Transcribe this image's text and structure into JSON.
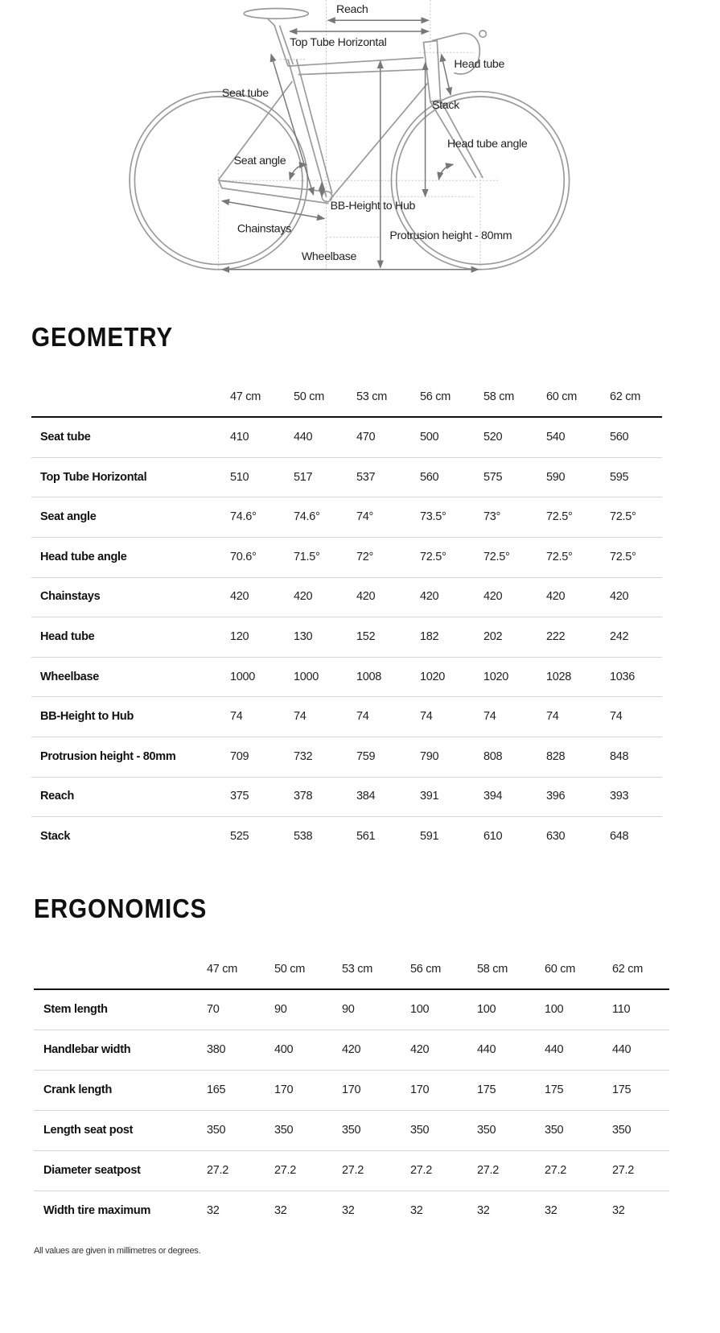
{
  "diagram": {
    "labels": {
      "reach": "Reach",
      "top_tube": "Top Tube Horizontal",
      "head_tube": "Head tube",
      "seat_tube": "Seat tube",
      "stack": "Stack",
      "head_tube_angle": "Head tube angle",
      "seat_angle": "Seat angle",
      "bb_height": "BB-Height to Hub",
      "chainstays": "Chainstays",
      "protrusion": "Protrusion height - 80mm",
      "wheelbase": "Wheelbase"
    }
  },
  "geometry": {
    "title": "GEOMETRY",
    "sizes": [
      "47 cm",
      "50 cm",
      "53 cm",
      "56 cm",
      "58 cm",
      "60 cm",
      "62 cm"
    ],
    "rows": [
      {
        "label": "Seat tube",
        "values": [
          "410",
          "440",
          "470",
          "500",
          "520",
          "540",
          "560"
        ]
      },
      {
        "label": "Top Tube Horizontal",
        "values": [
          "510",
          "517",
          "537",
          "560",
          "575",
          "590",
          "595"
        ]
      },
      {
        "label": "Seat angle",
        "values": [
          "74.6°",
          "74.6°",
          "74°",
          "73.5°",
          "73°",
          "72.5°",
          "72.5°"
        ]
      },
      {
        "label": "Head tube angle",
        "values": [
          "70.6°",
          "71.5°",
          "72°",
          "72.5°",
          "72.5°",
          "72.5°",
          "72.5°"
        ]
      },
      {
        "label": "Chainstays",
        "values": [
          "420",
          "420",
          "420",
          "420",
          "420",
          "420",
          "420"
        ]
      },
      {
        "label": "Head tube",
        "values": [
          "120",
          "130",
          "152",
          "182",
          "202",
          "222",
          "242"
        ]
      },
      {
        "label": "Wheelbase",
        "values": [
          "1000",
          "1000",
          "1008",
          "1020",
          "1020",
          "1028",
          "1036"
        ]
      },
      {
        "label": "BB-Height to Hub",
        "values": [
          "74",
          "74",
          "74",
          "74",
          "74",
          "74",
          "74"
        ]
      },
      {
        "label": "Protrusion height - 80mm",
        "values": [
          "709",
          "732",
          "759",
          "790",
          "808",
          "828",
          "848"
        ]
      },
      {
        "label": "Reach",
        "values": [
          "375",
          "378",
          "384",
          "391",
          "394",
          "396",
          "393"
        ]
      },
      {
        "label": "Stack",
        "values": [
          "525",
          "538",
          "561",
          "591",
          "610",
          "630",
          "648"
        ]
      }
    ]
  },
  "ergonomics": {
    "title": "ERGONOMICS",
    "sizes": [
      "47 cm",
      "50 cm",
      "53 cm",
      "56 cm",
      "58 cm",
      "60 cm",
      "62 cm"
    ],
    "rows": [
      {
        "label": "Stem length",
        "values": [
          "70",
          "90",
          "90",
          "100",
          "100",
          "100",
          "110"
        ]
      },
      {
        "label": "Handlebar width",
        "values": [
          "380",
          "400",
          "420",
          "420",
          "440",
          "440",
          "440"
        ]
      },
      {
        "label": "Crank length",
        "values": [
          "165",
          "170",
          "170",
          "170",
          "175",
          "175",
          "175"
        ]
      },
      {
        "label": "Length seat post",
        "values": [
          "350",
          "350",
          "350",
          "350",
          "350",
          "350",
          "350"
        ]
      },
      {
        "label": "Diameter seatpost",
        "values": [
          "27.2",
          "27.2",
          "27.2",
          "27.2",
          "27.2",
          "27.2",
          "27.2"
        ]
      },
      {
        "label": "Width tire maximum",
        "values": [
          "32",
          "32",
          "32",
          "32",
          "32",
          "32",
          "32"
        ]
      }
    ]
  },
  "footnote": "All values are given in millimetres or degrees."
}
